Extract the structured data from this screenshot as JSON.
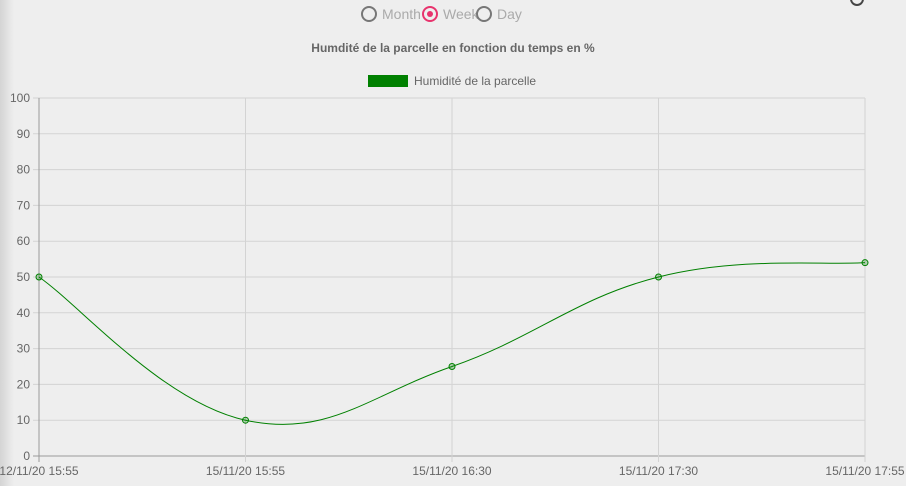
{
  "period_selector": {
    "options": [
      {
        "label": "Month",
        "checked": false
      },
      {
        "label": "Week",
        "checked": true
      },
      {
        "label": "Day",
        "checked": false
      }
    ]
  },
  "colors": {
    "series": "#008000",
    "radio_checked": "#e8336d",
    "grid": "#d3d3d3",
    "text": "#666666"
  },
  "chart_data": {
    "type": "line",
    "title": "Humdité de la parcelle en fonction du temps en %",
    "xlabel": "",
    "ylabel": "",
    "categories": [
      "12/11/20 15:55",
      "15/11/20 15:55",
      "15/11/20 16:30",
      "15/11/20 17:30",
      "15/11/20 17:55"
    ],
    "series": [
      {
        "name": "Humidité de la parcelle",
        "values": [
          50,
          10,
          25,
          50,
          54
        ],
        "color": "#008000"
      }
    ],
    "ylim": [
      0,
      100
    ],
    "yticks": [
      0,
      10,
      20,
      30,
      40,
      50,
      60,
      70,
      80,
      90,
      100
    ],
    "grid": true,
    "legend_position": "top"
  }
}
